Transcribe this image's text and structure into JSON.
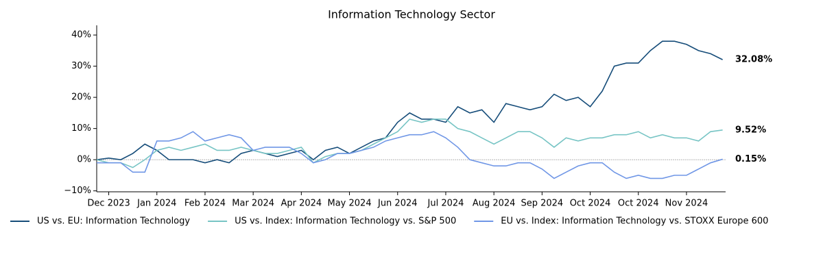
{
  "chart_data": {
    "type": "line",
    "title": "Information Technology Sector",
    "categories": [
      null,
      "Dec 2023",
      null,
      null,
      null,
      "Jan 2024",
      null,
      null,
      null,
      "Feb 2024",
      null,
      null,
      null,
      "Mar 2024",
      null,
      null,
      null,
      "Apr 2024",
      null,
      null,
      null,
      "May 2024",
      null,
      null,
      null,
      "Jun 2024",
      null,
      null,
      null,
      "Jul 2024",
      null,
      null,
      null,
      "Aug 2024",
      null,
      null,
      null,
      "Sep 2024",
      null,
      null,
      null,
      "Oct 2024",
      null,
      null,
      null,
      "Oct 2024",
      null,
      null,
      null,
      "Nov 2024",
      null,
      null,
      null
    ],
    "series": [
      {
        "name": "US vs. EU: Information Technology",
        "color": "#154c79",
        "values": [
          0,
          0.5,
          0,
          2,
          5,
          3,
          0,
          0,
          0,
          -1,
          0,
          -1,
          2,
          3,
          2,
          1,
          2,
          3,
          0,
          3,
          4,
          2,
          4,
          6,
          7,
          12,
          15,
          13,
          13,
          12,
          17,
          15,
          16,
          12,
          18,
          17,
          16,
          17,
          21,
          19,
          20,
          17,
          22,
          30,
          31,
          31,
          35,
          38,
          38,
          37,
          35,
          34,
          32.08
        ],
        "value_labels": [
          null,
          null,
          null,
          null,
          null,
          null,
          null,
          null,
          null,
          null,
          null,
          null,
          null,
          null,
          null,
          null,
          null,
          null,
          null,
          null,
          null,
          null,
          null,
          null,
          null,
          null,
          null,
          null,
          null,
          null,
          null,
          null,
          null,
          null,
          null,
          null,
          null,
          null,
          null,
          null,
          null,
          null,
          null,
          null,
          null,
          null,
          null,
          null,
          null,
          null,
          null,
          null,
          "32.08%"
        ]
      },
      {
        "name": "US vs. Index: Information Technology vs. S&P 500",
        "color": "#76c4c4",
        "values": [
          0,
          -1,
          -1,
          -2.5,
          0,
          3,
          4,
          3,
          4,
          5,
          3,
          3,
          4,
          3,
          2,
          2,
          3,
          4,
          -1,
          1,
          2,
          2,
          3,
          5,
          7,
          9,
          13,
          12,
          13,
          13,
          10,
          9,
          7,
          5,
          7,
          9,
          9,
          7,
          4,
          7,
          6,
          7,
          7,
          8,
          8,
          9,
          7,
          8,
          7,
          7,
          6,
          9,
          9.52
        ],
        "value_labels": [
          null,
          null,
          null,
          null,
          null,
          null,
          null,
          null,
          null,
          null,
          null,
          null,
          null,
          null,
          null,
          null,
          null,
          null,
          null,
          null,
          null,
          null,
          null,
          null,
          null,
          null,
          null,
          null,
          null,
          null,
          null,
          null,
          null,
          null,
          null,
          null,
          null,
          null,
          null,
          null,
          null,
          null,
          null,
          null,
          null,
          null,
          null,
          null,
          null,
          null,
          null,
          null,
          "9.52%"
        ]
      },
      {
        "name": "EU vs. Index: Information Technology vs. STOXX Europe 600",
        "color": "#6f96e6",
        "values": [
          -1,
          -1,
          -1,
          -4,
          -4,
          6,
          6,
          7,
          9,
          6,
          7,
          8,
          7,
          3,
          4,
          4,
          4,
          2,
          -1,
          0,
          2,
          2,
          3,
          4,
          6,
          7,
          8,
          8,
          9,
          7,
          4,
          0,
          -1,
          -2,
          -2,
          -1,
          -1,
          -3,
          -6,
          -4,
          -2,
          -1,
          -1,
          -4,
          -6,
          -5,
          -6,
          -6,
          -5,
          -5,
          -3,
          -1,
          0.15
        ],
        "value_labels": [
          null,
          null,
          null,
          null,
          null,
          null,
          null,
          null,
          null,
          null,
          null,
          null,
          null,
          null,
          null,
          null,
          null,
          null,
          null,
          null,
          null,
          null,
          null,
          null,
          null,
          null,
          null,
          null,
          null,
          null,
          null,
          null,
          null,
          null,
          null,
          null,
          null,
          null,
          null,
          null,
          null,
          null,
          null,
          null,
          null,
          null,
          null,
          null,
          null,
          null,
          null,
          null,
          "0.15%"
        ]
      }
    ],
    "ylim": [
      -10.3,
      43.1
    ],
    "yticks": [
      {
        "value": -10,
        "label": "−10%"
      },
      {
        "value": 0,
        "label": "0%"
      },
      {
        "value": 10,
        "label": "10%"
      },
      {
        "value": 20,
        "label": "20%"
      },
      {
        "value": 30,
        "label": "30%"
      },
      {
        "value": 40,
        "label": "40%"
      }
    ],
    "legend": "bottom",
    "grid": false
  }
}
